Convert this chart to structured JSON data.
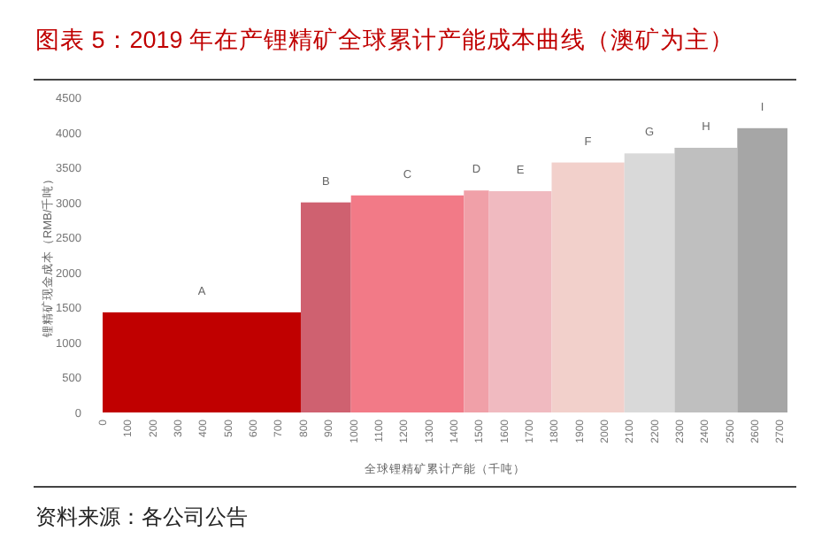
{
  "chart_data": {
    "type": "histogram",
    "title": "图表 5：2019 年在产锂精矿全球累计产能成本曲线（澳矿为主）",
    "xlabel": "全球锂精矿累计产能（千吨）",
    "ylabel": "锂精矿现金成本（RMB/千吨）",
    "bins": [
      0,
      790,
      990,
      1440,
      1540,
      1790,
      2080,
      2280,
      2530,
      2730
    ],
    "values": [
      1430,
      3000,
      3100,
      3170,
      3160,
      3570,
      3700,
      3780,
      4060
    ],
    "colors": [
      "#c00000",
      "#cf6170",
      "#f27a87",
      "#f0a0a8",
      "#f0bac0",
      "#f2d0cb",
      "#d9d9d9",
      "#bfbfbf",
      "#a6a6a6"
    ],
    "xlim": [
      0,
      2730
    ],
    "xticks": [
      0,
      100,
      200,
      300,
      400,
      500,
      600,
      700,
      800,
      900,
      1000,
      1100,
      1200,
      1300,
      1400,
      1500,
      1600,
      1700,
      1800,
      1900,
      2000,
      2100,
      2200,
      2300,
      2400,
      2500,
      2600,
      2700
    ],
    "ylim": [
      0,
      4500
    ],
    "yticks": [
      0,
      500,
      1000,
      1500,
      2000,
      2500,
      3000,
      3500,
      4000,
      4500
    ],
    "grid": false,
    "annotations": [
      {
        "text": "A",
        "x": 395,
        "y": 1430
      },
      {
        "text": "B",
        "x": 890,
        "y": 3000
      },
      {
        "text": "C",
        "x": 1215,
        "y": 3100
      },
      {
        "text": "D",
        "x": 1490,
        "y": 3170
      },
      {
        "text": "E",
        "x": 1665,
        "y": 3160
      },
      {
        "text": "F",
        "x": 1935,
        "y": 3570
      },
      {
        "text": "G",
        "x": 2180,
        "y": 3700
      },
      {
        "text": "H",
        "x": 2405,
        "y": 3780
      },
      {
        "text": "I",
        "x": 2630,
        "y": 4060
      },
      "资料来源：各公司公告"
    ]
  }
}
